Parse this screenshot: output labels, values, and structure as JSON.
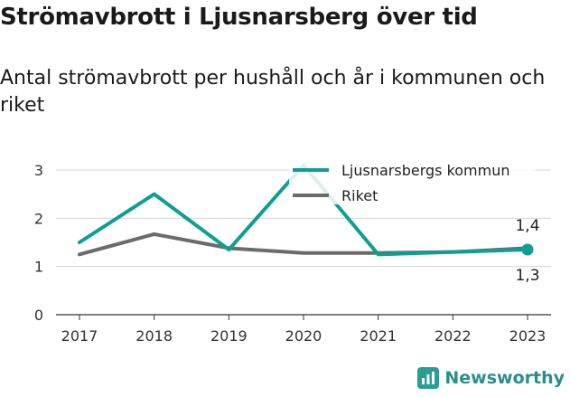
{
  "title": "Strömavbrott i Ljusnarsberg över tid",
  "subtitle": "Antal strömavbrott per hushåll och år i kommunen och riket",
  "brand": "Newsworthy",
  "chart_data": {
    "type": "line",
    "x": [
      "2017",
      "2018",
      "2019",
      "2020",
      "2021",
      "2022",
      "2023"
    ],
    "series": [
      {
        "name": "Ljusnarsbergs kommun",
        "color": "#0e9e93",
        "values": [
          1.5,
          2.5,
          1.35,
          3.1,
          1.25,
          1.3,
          1.35
        ]
      },
      {
        "name": "Riket",
        "color": "#6b6b6b",
        "values": [
          1.25,
          1.67,
          1.38,
          1.28,
          1.28,
          1.3,
          1.38
        ]
      }
    ],
    "yticks": [
      "0",
      "1",
      "2",
      "3"
    ],
    "ylim": [
      0,
      3
    ],
    "end_labels": {
      "kommun": "1,3",
      "riket": "1,4"
    },
    "legend_position": "top-right",
    "grid": "horizontal"
  }
}
